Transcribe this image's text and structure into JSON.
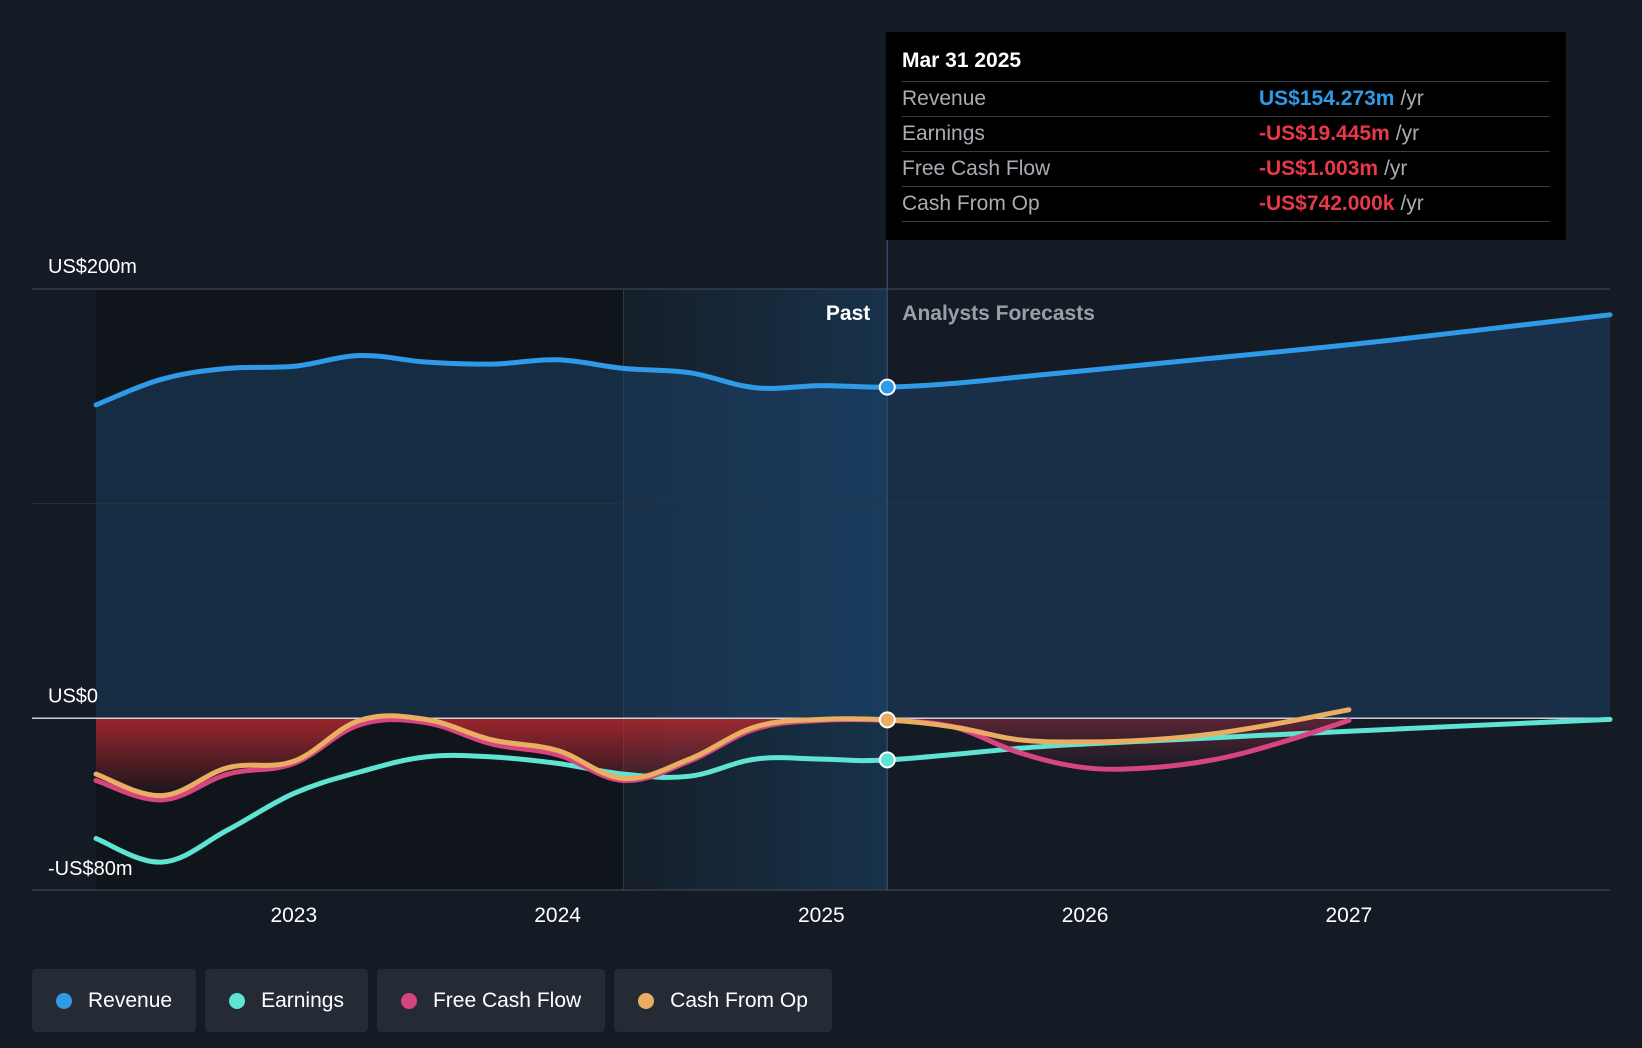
{
  "tooltip": {
    "date": "Mar 31 2025",
    "rows": [
      {
        "label": "Revenue",
        "value": "US$154.273m",
        "unit": "/yr",
        "color": "#2f9ae8"
      },
      {
        "label": "Earnings",
        "value": "-US$19.445m",
        "unit": "/yr",
        "color": "#e8394a"
      },
      {
        "label": "Free Cash Flow",
        "value": "-US$1.003m",
        "unit": "/yr",
        "color": "#e8394a"
      },
      {
        "label": "Cash From Op",
        "value": "-US$742.000k",
        "unit": "/yr",
        "color": "#e8394a"
      }
    ]
  },
  "period_labels": {
    "past": "Past",
    "forecast": "Analysts Forecasts"
  },
  "colors": {
    "revenue": "#2f9ae8",
    "earnings": "#5fe3d2",
    "free_cash_flow": "#d6457f",
    "cash_from_op": "#e9ae62",
    "background": "#151b24"
  },
  "chart_data": {
    "type": "line",
    "y_axis": {
      "min": -80,
      "max": 200,
      "unit": "US$m",
      "labels": [
        {
          "value": 200,
          "text": "US$200m"
        },
        {
          "value": 0,
          "text": "US$0"
        },
        {
          "value": -80,
          "text": "-US$80m"
        }
      ]
    },
    "x_axis": {
      "min": 2022.25,
      "max": 2027.99,
      "ticks": [
        2023,
        2024,
        2025,
        2026,
        2027
      ],
      "tick_labels": [
        "2023",
        "2024",
        "2025",
        "2026",
        "2027"
      ]
    },
    "past_forecast_boundary": 2025.25,
    "highlight_start": 2024.25,
    "grid": true,
    "legend_placement": "bottom-left",
    "series": [
      {
        "name": "Revenue",
        "key": "revenue",
        "points": [
          [
            2022.25,
            146
          ],
          [
            2022.5,
            158
          ],
          [
            2022.75,
            163
          ],
          [
            2023.0,
            164
          ],
          [
            2023.25,
            169
          ],
          [
            2023.5,
            166
          ],
          [
            2023.75,
            165
          ],
          [
            2024.0,
            167
          ],
          [
            2024.25,
            163
          ],
          [
            2024.5,
            161
          ],
          [
            2024.75,
            154
          ],
          [
            2025.0,
            155
          ],
          [
            2025.25,
            154.3
          ],
          [
            2025.5,
            156
          ],
          [
            2025.75,
            159
          ],
          [
            2026.0,
            162
          ],
          [
            2026.5,
            168
          ],
          [
            2027.0,
            174
          ],
          [
            2027.5,
            181
          ],
          [
            2027.99,
            188
          ]
        ]
      },
      {
        "name": "Earnings",
        "key": "earnings",
        "points": [
          [
            2022.25,
            -56
          ],
          [
            2022.5,
            -67
          ],
          [
            2022.75,
            -52
          ],
          [
            2023.0,
            -35
          ],
          [
            2023.25,
            -25
          ],
          [
            2023.5,
            -18
          ],
          [
            2023.75,
            -18
          ],
          [
            2024.0,
            -21
          ],
          [
            2024.25,
            -26
          ],
          [
            2024.5,
            -27
          ],
          [
            2024.75,
            -19
          ],
          [
            2025.0,
            -19
          ],
          [
            2025.25,
            -19.4
          ],
          [
            2025.75,
            -14
          ],
          [
            2026.0,
            -12
          ],
          [
            2026.5,
            -9
          ],
          [
            2027.0,
            -6
          ],
          [
            2027.99,
            -0.5
          ]
        ]
      },
      {
        "name": "Free Cash Flow",
        "key": "free_cash_flow",
        "points": [
          [
            2022.25,
            -29
          ],
          [
            2022.5,
            -38
          ],
          [
            2022.75,
            -26
          ],
          [
            2023.0,
            -21
          ],
          [
            2023.25,
            -3
          ],
          [
            2023.5,
            -2
          ],
          [
            2023.75,
            -12
          ],
          [
            2024.0,
            -17
          ],
          [
            2024.25,
            -29
          ],
          [
            2024.5,
            -20
          ],
          [
            2024.75,
            -5
          ],
          [
            2025.0,
            -1
          ],
          [
            2025.25,
            -1.0
          ],
          [
            2025.5,
            -4
          ],
          [
            2025.75,
            -16
          ],
          [
            2026.0,
            -23
          ],
          [
            2026.25,
            -23
          ],
          [
            2026.5,
            -19
          ],
          [
            2026.75,
            -11
          ],
          [
            2027.0,
            -1
          ]
        ]
      },
      {
        "name": "Cash From Op",
        "key": "cash_from_op",
        "points": [
          [
            2022.25,
            -26
          ],
          [
            2022.5,
            -36
          ],
          [
            2022.75,
            -23
          ],
          [
            2023.0,
            -20
          ],
          [
            2023.25,
            -1
          ],
          [
            2023.5,
            -0.5
          ],
          [
            2023.75,
            -10
          ],
          [
            2024.0,
            -15
          ],
          [
            2024.25,
            -28
          ],
          [
            2024.5,
            -19
          ],
          [
            2024.75,
            -4
          ],
          [
            2025.0,
            -0.5
          ],
          [
            2025.25,
            -0.74
          ],
          [
            2025.5,
            -4
          ],
          [
            2025.75,
            -10
          ],
          [
            2026.0,
            -11
          ],
          [
            2026.25,
            -10
          ],
          [
            2026.5,
            -7
          ],
          [
            2026.75,
            -2
          ],
          [
            2027.0,
            4
          ]
        ]
      }
    ]
  },
  "legend": [
    {
      "label": "Revenue",
      "color": "#2f9ae8"
    },
    {
      "label": "Earnings",
      "color": "#5fe3d2"
    },
    {
      "label": "Free Cash Flow",
      "color": "#d6457f"
    },
    {
      "label": "Cash From Op",
      "color": "#e9ae62"
    }
  ]
}
